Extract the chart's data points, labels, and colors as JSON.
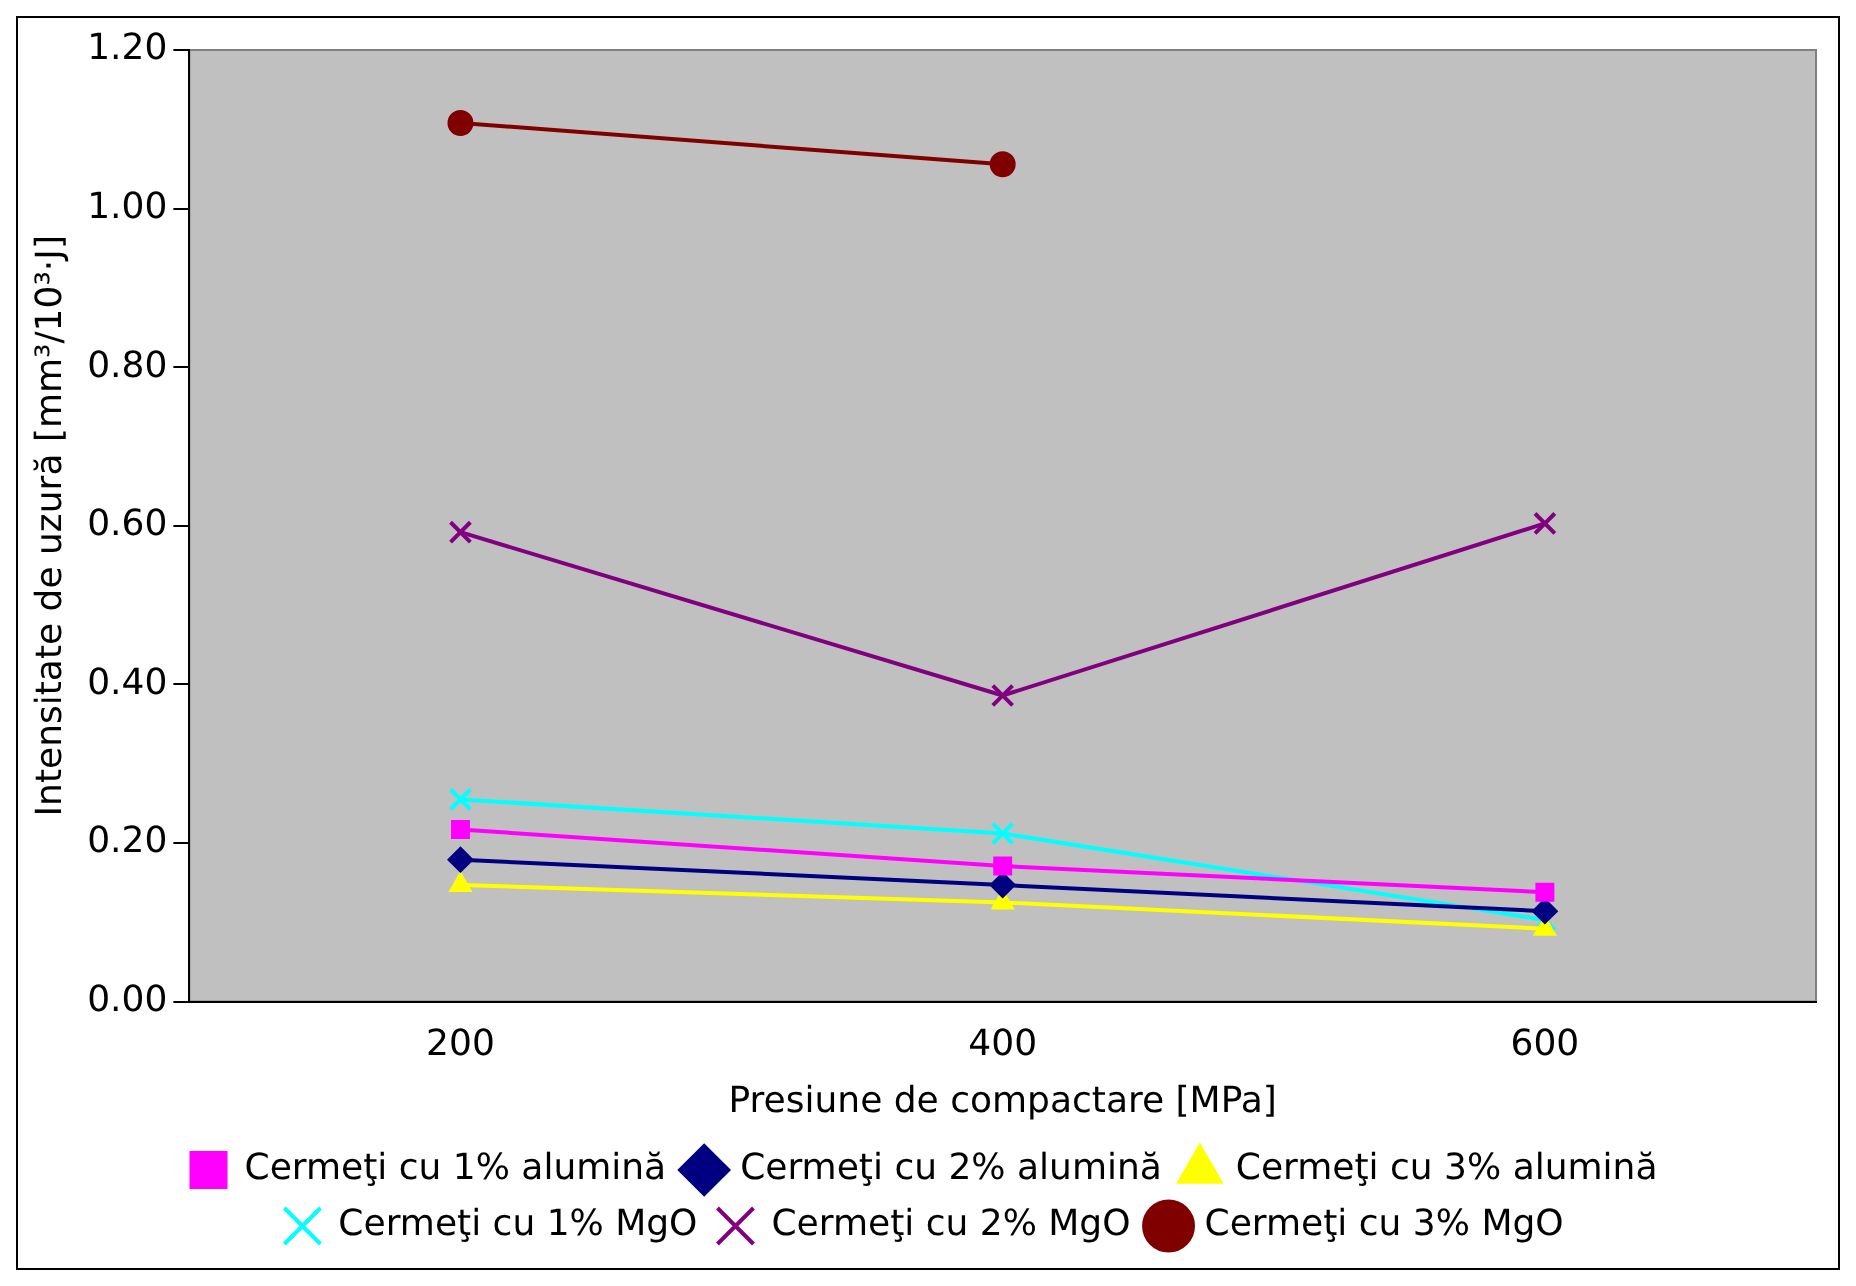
{
  "chart_data": {
    "type": "line",
    "xlabel": "Presiune de compactare [MPa]",
    "ylabel": "Intensitate de uzură [mm³/10³·J]",
    "categories": [
      "200",
      "400",
      "600"
    ],
    "series": [
      {
        "name": "Cermeţi cu 1% alumină",
        "color": "#ff00ff",
        "marker": "square",
        "values": [
          0.217,
          0.171,
          0.138
        ]
      },
      {
        "name": "Cermeţi cu 2% alumină",
        "color": "#000080",
        "marker": "diamond",
        "values": [
          0.179,
          0.147,
          0.114
        ]
      },
      {
        "name": "Cermeţi cu 3% alumină",
        "color": "#ffff00",
        "marker": "triangle",
        "values": [
          0.147,
          0.125,
          0.092
        ]
      },
      {
        "name": "Cermeţi cu 1% MgO",
        "color": "#00ffff",
        "marker": "cross",
        "values": [
          0.255,
          0.212,
          0.103
        ]
      },
      {
        "name": "Cermeţi cu 2% MgO",
        "color": "#800080",
        "marker": "cross",
        "values": [
          0.592,
          0.386,
          0.603
        ]
      },
      {
        "name": "Cermeţi cu 3% MgO",
        "color": "#800000",
        "marker": "circle",
        "values": [
          1.108,
          1.056,
          null
        ]
      }
    ],
    "ylim": [
      0,
      1.2
    ],
    "yticks": [
      {
        "value": 0,
        "label": "0.00"
      },
      {
        "value": 0.2,
        "label": "0.20"
      },
      {
        "value": 0.4,
        "label": "0.40"
      },
      {
        "value": 0.6,
        "label": "0.60"
      },
      {
        "value": 0.8,
        "label": "0.80"
      },
      {
        "value": 1,
        "label": "1.00"
      },
      {
        "value": 1.2,
        "label": "1.20"
      }
    ],
    "grid": false,
    "legend": "bottom",
    "line_style": "solid"
  }
}
